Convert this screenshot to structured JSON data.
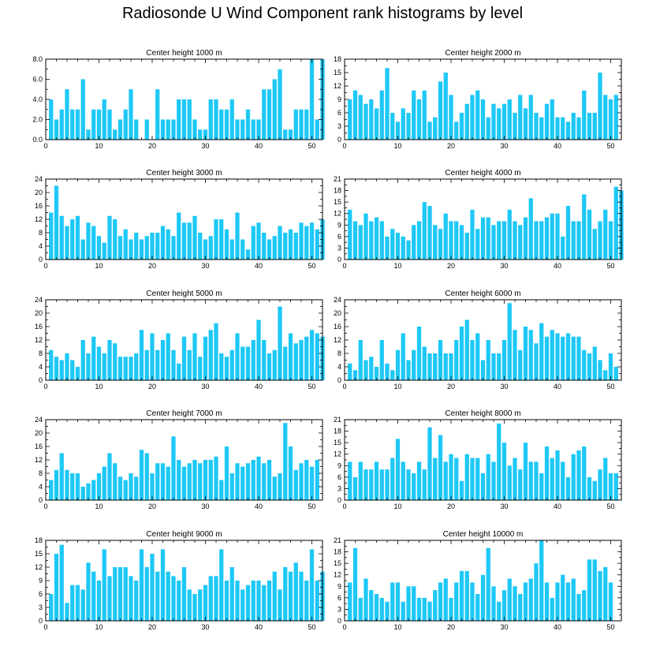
{
  "title": "Radiosonde U Wind Component rank histograms by level",
  "colors": {
    "bar": "#1ec8f6",
    "axis": "#000000",
    "background": "#ffffff"
  },
  "chart_data": [
    {
      "type": "bar",
      "title": "Center height 1000 m",
      "xlim": [
        0,
        52
      ],
      "xticks": [
        0,
        10,
        20,
        30,
        40,
        50
      ],
      "xtick_labels": [
        "0",
        "10",
        "20",
        "30",
        "40",
        "50"
      ],
      "ylim": [
        0,
        8
      ],
      "yticks": [
        0,
        2,
        4,
        6,
        8
      ],
      "ytick_labels": [
        "0.0",
        "2.0",
        "4.0",
        "6.0",
        "8.0"
      ],
      "values": [
        4,
        2,
        3,
        5,
        3,
        3,
        6,
        1,
        3,
        3,
        4,
        3,
        1,
        2,
        3,
        5,
        2,
        0,
        2,
        0,
        5,
        2,
        2,
        2,
        4,
        4,
        4,
        2,
        1,
        1,
        4,
        4,
        3,
        3,
        4,
        2,
        2,
        3,
        2,
        2,
        5,
        5,
        6,
        7,
        1,
        1,
        3,
        3,
        3,
        8,
        2,
        8
      ]
    },
    {
      "type": "bar",
      "title": "Center height 2000 m",
      "xlim": [
        0,
        52
      ],
      "xticks": [
        0,
        10,
        20,
        30,
        40,
        50
      ],
      "xtick_labels": [
        "0",
        "10",
        "20",
        "30",
        "40",
        "50"
      ],
      "ylim": [
        0,
        18
      ],
      "yticks": [
        0,
        3,
        6,
        9,
        12,
        15,
        18
      ],
      "ytick_labels": [
        "0",
        "3",
        "6",
        "9",
        "12",
        "15",
        "18"
      ],
      "values": [
        9,
        11,
        10,
        8,
        9,
        7,
        11,
        16,
        6,
        4,
        7,
        6,
        11,
        9,
        11,
        4,
        5,
        13,
        15,
        10,
        4,
        6,
        8,
        10,
        11,
        9,
        5,
        8,
        7,
        8,
        9,
        6,
        10,
        7,
        10,
        6,
        5,
        8,
        9,
        5,
        5,
        4,
        6,
        5,
        11,
        6,
        6,
        15,
        10,
        9,
        10,
        0
      ]
    },
    {
      "type": "bar",
      "title": "Center height 3000 m",
      "xlim": [
        0,
        52
      ],
      "xticks": [
        0,
        10,
        20,
        30,
        40,
        50
      ],
      "xtick_labels": [
        "0",
        "10",
        "20",
        "30",
        "40",
        "50"
      ],
      "ylim": [
        0,
        24
      ],
      "yticks": [
        0,
        4,
        8,
        12,
        16,
        20,
        24
      ],
      "ytick_labels": [
        "0",
        "4",
        "8",
        "12",
        "16",
        "20",
        "24"
      ],
      "values": [
        14,
        22,
        13,
        10,
        12,
        13,
        6,
        11,
        10,
        7,
        5,
        13,
        12,
        7,
        9,
        6,
        8,
        6,
        7,
        8,
        8,
        10,
        9,
        7,
        14,
        11,
        11,
        13,
        8,
        6,
        7,
        12,
        12,
        9,
        6,
        14,
        6,
        3,
        10,
        11,
        8,
        6,
        7,
        10,
        8,
        9,
        8,
        11,
        10,
        11,
        9,
        12
      ]
    },
    {
      "type": "bar",
      "title": "Center height 4000 m",
      "xlim": [
        0,
        52
      ],
      "xticks": [
        0,
        10,
        20,
        30,
        40,
        50
      ],
      "xtick_labels": [
        "0",
        "10",
        "20",
        "30",
        "40",
        "50"
      ],
      "ylim": [
        0,
        21
      ],
      "yticks": [
        0,
        3,
        6,
        9,
        12,
        15,
        18,
        21
      ],
      "ytick_labels": [
        "0",
        "3",
        "6",
        "9",
        "12",
        "15",
        "18",
        "21"
      ],
      "values": [
        13,
        10,
        9,
        12,
        10,
        11,
        10,
        6,
        8,
        7,
        6,
        5,
        9,
        10,
        15,
        14,
        9,
        8,
        12,
        10,
        10,
        9,
        7,
        13,
        8,
        11,
        11,
        9,
        10,
        10,
        13,
        10,
        9,
        11,
        16,
        10,
        10,
        11,
        12,
        12,
        6,
        14,
        10,
        10,
        17,
        13,
        8,
        10,
        13,
        10,
        19,
        18
      ]
    },
    {
      "type": "bar",
      "title": "Center height 5000 m",
      "xlim": [
        0,
        52
      ],
      "xticks": [
        0,
        10,
        20,
        30,
        40,
        50
      ],
      "xtick_labels": [
        "0",
        "10",
        "20",
        "30",
        "40",
        "50"
      ],
      "ylim": [
        0,
        24
      ],
      "yticks": [
        0,
        4,
        8,
        12,
        16,
        20,
        24
      ],
      "ytick_labels": [
        "0",
        "4",
        "8",
        "12",
        "16",
        "20",
        "24"
      ],
      "values": [
        9,
        7,
        6,
        8,
        6,
        4,
        12,
        8,
        13,
        10,
        8,
        12,
        11,
        7,
        7,
        7,
        8,
        15,
        9,
        14,
        9,
        12,
        14,
        9,
        5,
        13,
        9,
        14,
        7,
        13,
        15,
        17,
        8,
        7,
        9,
        14,
        10,
        10,
        12,
        18,
        12,
        8,
        9,
        22,
        10,
        14,
        11,
        12,
        13,
        15,
        14,
        13
      ]
    },
    {
      "type": "bar",
      "title": "Center height 6000 m",
      "xlim": [
        0,
        52
      ],
      "xticks": [
        0,
        10,
        20,
        30,
        40,
        50
      ],
      "xtick_labels": [
        "0",
        "10",
        "20",
        "30",
        "40",
        "50"
      ],
      "ylim": [
        0,
        24
      ],
      "yticks": [
        0,
        4,
        8,
        12,
        16,
        20,
        24
      ],
      "ytick_labels": [
        "0",
        "4",
        "8",
        "12",
        "16",
        "20",
        "24"
      ],
      "values": [
        5,
        3,
        12,
        6,
        7,
        4,
        12,
        5,
        3,
        9,
        14,
        6,
        9,
        16,
        10,
        8,
        8,
        12,
        8,
        8,
        12,
        16,
        18,
        12,
        14,
        6,
        12,
        8,
        8,
        12,
        23,
        15,
        9,
        16,
        15,
        11,
        17,
        13,
        15,
        14,
        13,
        14,
        13,
        13,
        9,
        8,
        10,
        6,
        3,
        8,
        4,
        0
      ]
    },
    {
      "type": "bar",
      "title": "Center height 7000 m",
      "xlim": [
        0,
        52
      ],
      "xticks": [
        0,
        10,
        20,
        30,
        40,
        50
      ],
      "xtick_labels": [
        "0",
        "10",
        "20",
        "30",
        "40",
        "50"
      ],
      "ylim": [
        0,
        24
      ],
      "yticks": [
        0,
        4,
        8,
        12,
        16,
        20,
        24
      ],
      "ytick_labels": [
        "0",
        "4",
        "8",
        "12",
        "16",
        "20",
        "24"
      ],
      "values": [
        6,
        9,
        14,
        9,
        8,
        8,
        4,
        5,
        6,
        8,
        10,
        14,
        11,
        7,
        6,
        8,
        7,
        15,
        14,
        8,
        11,
        11,
        10,
        19,
        12,
        10,
        11,
        12,
        11,
        12,
        12,
        13,
        6,
        16,
        8,
        11,
        10,
        11,
        12,
        13,
        11,
        12,
        7,
        8,
        23,
        16,
        9,
        11,
        12,
        10,
        12,
        0
      ]
    },
    {
      "type": "bar",
      "title": "Center height 8000 m",
      "xlim": [
        0,
        52
      ],
      "xticks": [
        0,
        10,
        20,
        30,
        40,
        50
      ],
      "xtick_labels": [
        "0",
        "10",
        "20",
        "30",
        "40",
        "50"
      ],
      "ylim": [
        0,
        21
      ],
      "yticks": [
        0,
        3,
        6,
        9,
        12,
        15,
        18,
        21
      ],
      "ytick_labels": [
        "0",
        "3",
        "6",
        "9",
        "12",
        "15",
        "18",
        "21"
      ],
      "values": [
        10,
        6,
        10,
        8,
        8,
        10,
        8,
        8,
        11,
        16,
        10,
        8,
        7,
        10,
        8,
        19,
        11,
        17,
        10,
        12,
        11,
        5,
        12,
        11,
        11,
        7,
        12,
        10,
        20,
        15,
        9,
        11,
        8,
        15,
        10,
        10,
        7,
        14,
        11,
        13,
        10,
        6,
        12,
        13,
        14,
        6,
        5,
        8,
        11,
        7,
        7,
        0
      ]
    },
    {
      "type": "bar",
      "title": "Center height 9000 m",
      "xlim": [
        0,
        52
      ],
      "xticks": [
        0,
        10,
        20,
        30,
        40,
        50
      ],
      "xtick_labels": [
        "0",
        "10",
        "20",
        "30",
        "40",
        "50"
      ],
      "ylim": [
        0,
        18
      ],
      "yticks": [
        0,
        3,
        6,
        9,
        12,
        15,
        18
      ],
      "ytick_labels": [
        "0",
        "3",
        "6",
        "9",
        "12",
        "15",
        "18"
      ],
      "values": [
        6,
        15,
        17,
        4,
        8,
        8,
        7,
        13,
        11,
        9,
        16,
        10,
        12,
        12,
        12,
        10,
        9,
        16,
        12,
        15,
        11,
        16,
        11,
        10,
        9,
        12,
        7,
        6,
        7,
        8,
        10,
        10,
        16,
        9,
        12,
        9,
        7,
        8,
        9,
        9,
        8,
        9,
        11,
        7,
        12,
        11,
        13,
        11,
        9,
        16,
        9,
        11
      ]
    },
    {
      "type": "bar",
      "title": "Center height 10000 m",
      "xlim": [
        0,
        52
      ],
      "xticks": [
        0,
        10,
        20,
        30,
        40,
        50
      ],
      "xtick_labels": [
        "0",
        "10",
        "20",
        "30",
        "40",
        "50"
      ],
      "ylim": [
        0,
        21
      ],
      "yticks": [
        0,
        3,
        6,
        9,
        12,
        15,
        18,
        21
      ],
      "ytick_labels": [
        "0",
        "3",
        "6",
        "9",
        "12",
        "15",
        "18",
        "21"
      ],
      "values": [
        10,
        19,
        6,
        11,
        8,
        7,
        6,
        5,
        10,
        10,
        5,
        9,
        9,
        6,
        6,
        5,
        8,
        10,
        11,
        6,
        10,
        13,
        13,
        10,
        7,
        12,
        19,
        9,
        5,
        8,
        11,
        9,
        7,
        10,
        11,
        15,
        21,
        10,
        6,
        10,
        12,
        10,
        11,
        7,
        8,
        16,
        16,
        13,
        14,
        10,
        0,
        0
      ]
    }
  ]
}
